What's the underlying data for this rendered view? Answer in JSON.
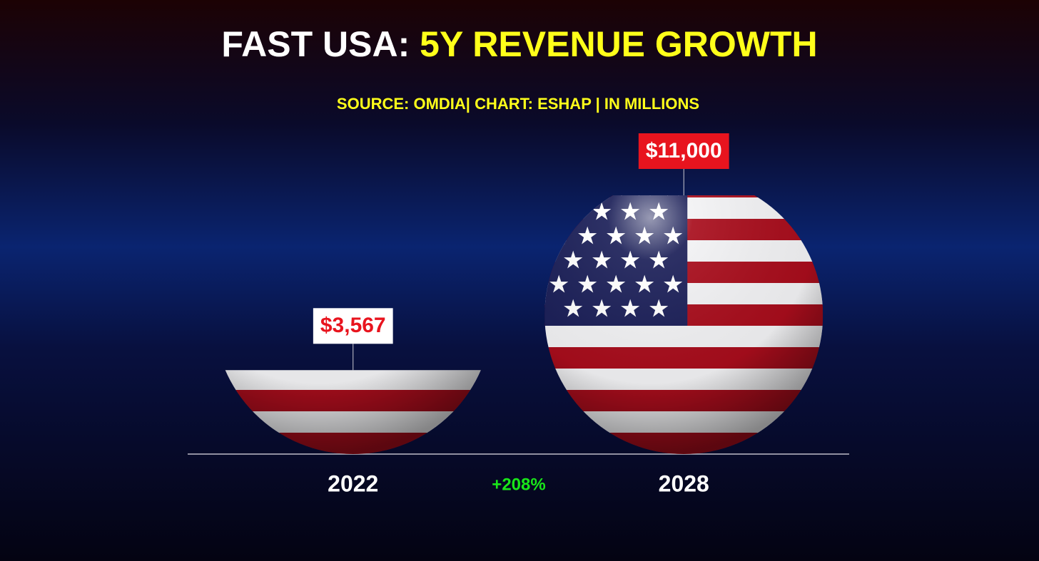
{
  "chart_data": {
    "type": "bar",
    "title": [
      "FAST USA:",
      "5Y REVENUE GROWTH"
    ],
    "subtitle": "SOURCE: OMDIA| CHART: ESHAP | IN MILLIONS",
    "categories": [
      "2022",
      "2028"
    ],
    "values": [
      3567,
      11000
    ],
    "value_labels": [
      "$3,567",
      "$11,000"
    ],
    "annotation": "+208%"
  }
}
